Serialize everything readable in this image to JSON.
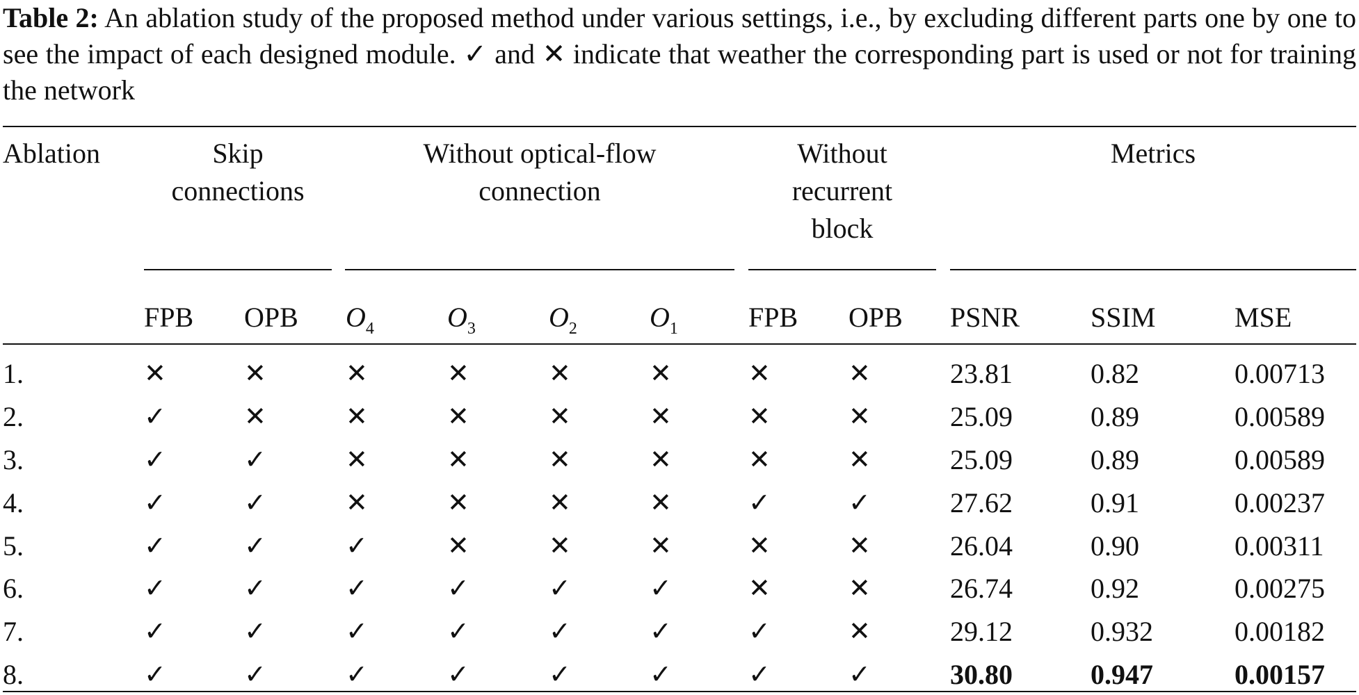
{
  "caption": {
    "label": "Table 2:",
    "text": "An ablation study of the proposed method under various settings, i.e., by excluding different parts one by one to see the impact of each designed module. ✓ and ✕ indicate that weather the corresponding part is used or not for training the network"
  },
  "table": {
    "group_headers": {
      "ablation": "Ablation",
      "skip_line1": "Skip",
      "skip_line2": "connections",
      "optflow_line1": "Without optical-flow",
      "optflow_line2": "connection",
      "recurrent_line1": "Without",
      "recurrent_line2": "recurrent",
      "recurrent_line3": "block",
      "metrics": "Metrics"
    },
    "sub_headers": {
      "skip_fpb": "FPB",
      "skip_opb": "OPB",
      "o4": "O",
      "o4_sub": "4",
      "o3": "O",
      "o3_sub": "3",
      "o2": "O",
      "o2_sub": "2",
      "o1": "O",
      "o1_sub": "1",
      "rec_fpb": "FPB",
      "rec_opb": "OPB",
      "psnr": "PSNR",
      "ssim": "SSIM",
      "mse": "MSE"
    },
    "rows": [
      {
        "id": "1.",
        "marks": [
          "✕",
          "✕",
          "✕",
          "✕",
          "✕",
          "✕",
          "✕",
          "✕"
        ],
        "psnr": "23.81",
        "ssim": "0.82",
        "mse": "0.00713"
      },
      {
        "id": "2.",
        "marks": [
          "✓",
          "✕",
          "✕",
          "✕",
          "✕",
          "✕",
          "✕",
          "✕"
        ],
        "psnr": "25.09",
        "ssim": "0.89",
        "mse": "0.00589"
      },
      {
        "id": "3.",
        "marks": [
          "✓",
          "✓",
          "✕",
          "✕",
          "✕",
          "✕",
          "✕",
          "✕"
        ],
        "psnr": "25.09",
        "ssim": "0.89",
        "mse": "0.00589"
      },
      {
        "id": "4.",
        "marks": [
          "✓",
          "✓",
          "✕",
          "✕",
          "✕",
          "✕",
          "✓",
          "✓"
        ],
        "psnr": "27.62",
        "ssim": "0.91",
        "mse": "0.00237"
      },
      {
        "id": "5.",
        "marks": [
          "✓",
          "✓",
          "✓",
          "✕",
          "✕",
          "✕",
          "✕",
          "✕"
        ],
        "psnr": "26.04",
        "ssim": "0.90",
        "mse": "0.00311"
      },
      {
        "id": "6.",
        "marks": [
          "✓",
          "✓",
          "✓",
          "✓",
          "✓",
          "✓",
          "✕",
          "✕"
        ],
        "psnr": "26.74",
        "ssim": "0.92",
        "mse": "0.00275"
      },
      {
        "id": "7.",
        "marks": [
          "✓",
          "✓",
          "✓",
          "✓",
          "✓",
          "✓",
          "✓",
          "✕"
        ],
        "psnr": "29.12",
        "ssim": "0.932",
        "mse": "0.00182"
      },
      {
        "id": "8.",
        "marks": [
          "✓",
          "✓",
          "✓",
          "✓",
          "✓",
          "✓",
          "✓",
          "✓"
        ],
        "psnr": "30.80",
        "ssim": "0.947",
        "mse": "0.00157",
        "best": true
      }
    ]
  }
}
